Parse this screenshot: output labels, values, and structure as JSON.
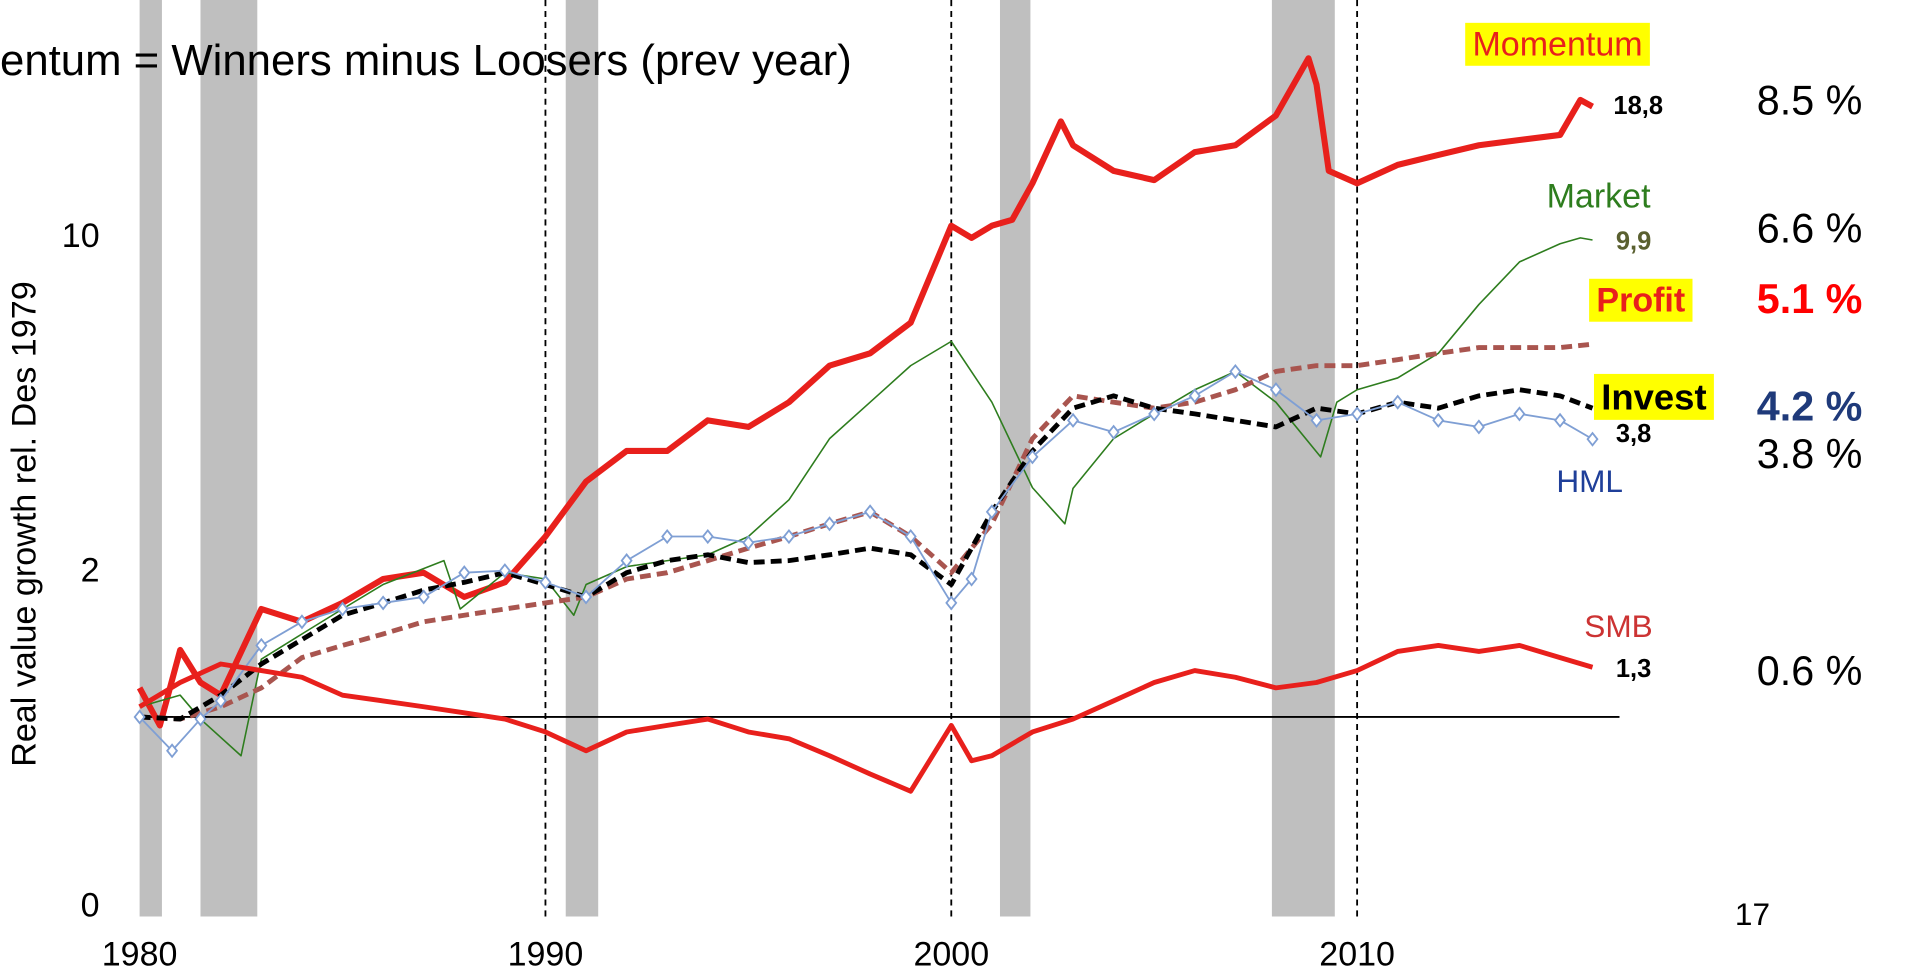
{
  "chart_data": {
    "type": "line",
    "title": "entum = Winners minus Loosers  (prev year)",
    "y_label": "Real value growth rel.  Des 1979",
    "yscale": "log",
    "xlim": [
      1976.56,
      2023.5
    ],
    "ylim": [
      0.37,
      31
    ],
    "xticks": [
      1980,
      1990,
      2000,
      2010
    ],
    "yticks": [
      {
        "value": 0.4,
        "label": "0"
      },
      2,
      10
    ],
    "baseline": 1,
    "shaded_periods": [
      [
        1980,
        1980.55
      ],
      [
        1981.5,
        1982.9
      ],
      [
        1990.5,
        1991.3
      ],
      [
        2001.2,
        2001.95
      ],
      [
        2007.9,
        2009.45
      ]
    ],
    "vlines": [
      1990,
      2000,
      2010
    ],
    "series": [
      {
        "name": "Momentum",
        "color": "#e8201c",
        "label_color": "#e8201c",
        "highlight": "#ffff00",
        "end_label": "18,8",
        "x": [
          1980,
          1980.5,
          1981,
          1981.5,
          1982,
          1983,
          1984,
          1985,
          1986,
          1987,
          1988,
          1989,
          1990,
          1991,
          1992,
          1993,
          1994,
          1995,
          1996,
          1997,
          1998,
          1999,
          2000,
          2000.5,
          2001,
          2001.5,
          2002,
          2002.7,
          2003,
          2004,
          2005,
          2006,
          2007,
          2008,
          2008.8,
          2009,
          2009.3,
          2010,
          2011,
          2012,
          2013,
          2014,
          2015,
          2015.5,
          2015.8
        ],
        "values": [
          1.15,
          0.96,
          1.38,
          1.18,
          1.11,
          1.68,
          1.58,
          1.73,
          1.94,
          2.0,
          1.78,
          1.91,
          2.38,
          3.1,
          3.59,
          3.59,
          4.16,
          4.03,
          4.54,
          5.41,
          5.74,
          6.65,
          10.6,
          10,
          10.6,
          10.9,
          13,
          17.5,
          15.6,
          13.8,
          13.2,
          15.1,
          15.6,
          18,
          23.7,
          20.9,
          13.8,
          13,
          14.2,
          14.9,
          15.6,
          16,
          16.4,
          19.4,
          18.8
        ]
      },
      {
        "name": "Market",
        "color": "#2e7d1e",
        "label_color": "#2e7d1e",
        "end_label": "9,9",
        "x": [
          1980,
          1981,
          1981.5,
          1982.5,
          1983,
          1984,
          1985,
          1986,
          1987.5,
          1987.9,
          1989,
          1990,
          1990.7,
          1991,
          1992,
          1994,
          1995,
          1996,
          1997,
          1998,
          1999,
          2000,
          2001,
          2002,
          2002.8,
          2003,
          2004,
          2005,
          2006,
          2007,
          2008,
          2009.1,
          2009.5,
          2010,
          2011,
          2012,
          2013,
          2014,
          2015,
          2015.5,
          2015.8
        ],
        "values": [
          1.05,
          1.11,
          0.99,
          0.83,
          1.32,
          1.49,
          1.68,
          1.89,
          2.12,
          1.68,
          2.0,
          1.94,
          1.63,
          1.89,
          2.06,
          2.18,
          2.38,
          2.84,
          3.81,
          4.54,
          5.41,
          6.08,
          4.54,
          3.01,
          2.53,
          3.0,
          3.81,
          4.29,
          4.82,
          5.26,
          4.54,
          3.49,
          4.54,
          4.82,
          5.1,
          5.74,
          7.26,
          8.91,
          9.72,
          10,
          9.9
        ]
      },
      {
        "name": "Profit",
        "color": "#a9554f",
        "label_color": "#e8201c",
        "highlight": "#ffff00",
        "dashed": true,
        "x": [
          1980,
          1981,
          1982,
          1983,
          1984,
          1985,
          1986,
          1987,
          1988,
          1989,
          1990,
          1991,
          1992,
          1993,
          1994,
          1995,
          1996,
          1997,
          1998,
          1999,
          2000,
          2001,
          2002,
          2003,
          2004,
          2005,
          2006,
          2007,
          2008,
          2009,
          2010,
          2011,
          2012,
          2013,
          2014,
          2015,
          2015.8
        ],
        "values": [
          1.0,
          0.99,
          1.05,
          1.15,
          1.33,
          1.41,
          1.49,
          1.58,
          1.63,
          1.68,
          1.73,
          1.78,
          1.94,
          2.0,
          2.12,
          2.25,
          2.38,
          2.53,
          2.68,
          2.38,
          2.0,
          2.53,
          3.81,
          4.68,
          4.54,
          4.41,
          4.54,
          4.82,
          5.26,
          5.41,
          5.41,
          5.57,
          5.74,
          5.9,
          5.9,
          5.9,
          6.0
        ]
      },
      {
        "name": "Invest",
        "color": "#000000",
        "label_color": "#000000",
        "highlight": "#ffff00",
        "dashed": true,
        "x": [
          1980,
          1981,
          1982,
          1983,
          1984,
          1985,
          1986,
          1987,
          1988,
          1989,
          1990,
          1991,
          1992,
          1993,
          1994,
          1995,
          1996,
          1997,
          1998,
          1999,
          2000,
          2001,
          2002,
          2003,
          2004,
          2005,
          2006,
          2007,
          2008,
          2009,
          2010,
          2011,
          2012,
          2013,
          2014,
          2015,
          2015.8
        ],
        "values": [
          1.0,
          0.99,
          1.11,
          1.29,
          1.45,
          1.63,
          1.73,
          1.84,
          1.91,
          2.0,
          1.89,
          1.78,
          2.0,
          2.12,
          2.18,
          2.1,
          2.12,
          2.18,
          2.25,
          2.18,
          1.89,
          2.68,
          3.59,
          4.41,
          4.68,
          4.41,
          4.29,
          4.16,
          4.03,
          4.41,
          4.29,
          4.54,
          4.41,
          4.68,
          4.82,
          4.68,
          4.41
        ]
      },
      {
        "name": "HML",
        "color": "#7f9fd4",
        "label_color": "#1f3f99",
        "marker": "diamond",
        "end_label": "3,8",
        "x": [
          1980,
          1980.8,
          1981.5,
          1982,
          1983,
          1984,
          1985,
          1986,
          1987,
          1988,
          1989,
          1990,
          1991,
          1992,
          1993,
          1994,
          1995,
          1996,
          1997,
          1998,
          1999,
          2000,
          2000.5,
          2001,
          2002,
          2003,
          2004,
          2005,
          2006,
          2007,
          2008,
          2009,
          2010,
          2011,
          2012,
          2013,
          2014,
          2015,
          2015.8
        ],
        "values": [
          1.0,
          0.85,
          0.99,
          1.08,
          1.41,
          1.58,
          1.68,
          1.73,
          1.78,
          2.0,
          2.02,
          1.91,
          1.78,
          2.12,
          2.38,
          2.38,
          2.31,
          2.38,
          2.53,
          2.68,
          2.38,
          1.73,
          1.94,
          2.68,
          3.49,
          4.16,
          3.93,
          4.29,
          4.68,
          5.26,
          4.82,
          4.16,
          4.29,
          4.54,
          4.16,
          4.03,
          4.29,
          4.16,
          3.8
        ]
      },
      {
        "name": "SMB",
        "color": "#e8201c",
        "label_color": "#cc3333",
        "end_label": "1,3",
        "x": [
          1980,
          1981,
          1982,
          1983,
          1984,
          1985,
          1986,
          1987,
          1988,
          1989,
          1990,
          1991,
          1992,
          1993,
          1994,
          1995,
          1996,
          1997,
          1998,
          1999,
          2000,
          2000.5,
          2001,
          2002,
          2003,
          2004,
          2005,
          2006,
          2007,
          2008,
          2009,
          2010,
          2011,
          2012,
          2013,
          2014,
          2015,
          2015.8
        ],
        "values": [
          1.05,
          1.18,
          1.29,
          1.25,
          1.21,
          1.11,
          1.08,
          1.05,
          1.02,
          0.99,
          0.93,
          0.85,
          0.93,
          0.96,
          0.99,
          0.93,
          0.9,
          0.83,
          0.76,
          0.7,
          0.96,
          0.81,
          0.83,
          0.93,
          0.99,
          1.08,
          1.18,
          1.25,
          1.21,
          1.15,
          1.18,
          1.25,
          1.37,
          1.41,
          1.37,
          1.41,
          1.33,
          1.27
        ]
      }
    ],
    "annotations": [
      {
        "text": "8.5 %",
        "color": "#000000",
        "bold": false
      },
      {
        "text": "6.6 %",
        "color": "#000000",
        "bold": false
      },
      {
        "text": "5.1 %",
        "color": "#ff0000",
        "bold": true
      },
      {
        "text": "4.2 %",
        "color": "#1f3a7a",
        "bold": true
      },
      {
        "text": "3.8 %",
        "color": "#000000",
        "bold": false
      },
      {
        "text": "0.6 %",
        "color": "#000000",
        "bold": false
      }
    ],
    "page_number": "17"
  }
}
